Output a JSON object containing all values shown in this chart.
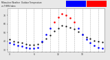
{
  "background_color": "#e8e8e8",
  "plot_bg_color": "#ffffff",
  "legend_blue_color": "#0000ff",
  "legend_red_color": "#ff0000",
  "hours": [
    0,
    1,
    2,
    3,
    4,
    5,
    6,
    7,
    8,
    9,
    10,
    11,
    12,
    13,
    14,
    15,
    16,
    17,
    18,
    19,
    20,
    21,
    22,
    23
  ],
  "temp_values": [
    42,
    40,
    39,
    38,
    37,
    36,
    36,
    37,
    39,
    43,
    47,
    52,
    55,
    58,
    57,
    56,
    54,
    51,
    48,
    45,
    43,
    41,
    40,
    39
  ],
  "thsw_values": [
    38,
    37,
    35,
    34,
    33,
    32,
    32,
    33,
    40,
    48,
    55,
    62,
    68,
    72,
    70,
    67,
    62,
    55,
    48,
    42,
    38,
    35,
    33,
    32
  ],
  "ylim": [
    28,
    78
  ],
  "ytick_values": [
    30,
    40,
    50,
    60,
    70
  ],
  "ytick_labels": [
    "30",
    "40",
    "50",
    "60",
    "70"
  ],
  "grid_hours": [
    0,
    2,
    4,
    6,
    8,
    10,
    12,
    14,
    16,
    18,
    20,
    22
  ],
  "grid_color": "#999999",
  "temp_dot_color": "#000000",
  "thsw_blue_color": "#0000ff",
  "thsw_red_color": "#ff0000",
  "thsw_threshold": 60,
  "title_text": "Milwaukee Weather  Outdoor Temperature",
  "title_text2": "vs THSW Index",
  "xtick_labels": [
    "0",
    "",
    "",
    "",
    "",
    "",
    "6",
    "",
    "",
    "",
    "",
    "",
    "12",
    "",
    "",
    "",
    "",
    "",
    "18",
    "",
    "",
    "",
    "",
    ""
  ],
  "dot_size_temp": 1.2,
  "dot_size_thsw": 1.8
}
